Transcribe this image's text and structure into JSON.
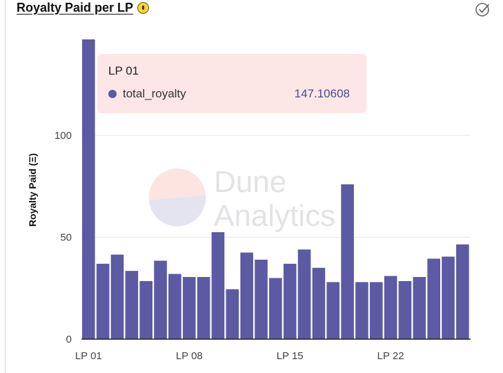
{
  "header": {
    "title": "Royalty Paid per LP"
  },
  "tooltip": {
    "title": "LP 01",
    "series_name": "total_royalty",
    "value": "147.10608"
  },
  "watermark": {
    "line1": "Dune",
    "line2": "Analytics"
  },
  "colors": {
    "bar": "#5b5aa3",
    "accent": "#f6d33c"
  },
  "chart_data": {
    "type": "bar",
    "title": "Royalty Paid per LP",
    "xlabel": "",
    "ylabel": "Royalty Paid (Ξ)",
    "ylim": [
      0,
      148
    ],
    "yticks": [
      0,
      50,
      100
    ],
    "xtick_labels": [
      "LP 01",
      "LP 08",
      "LP 15",
      "LP 22"
    ],
    "categories": [
      "LP 01",
      "LP 02",
      "LP 03",
      "LP 04",
      "LP 05",
      "LP 06",
      "LP 07",
      "LP 08",
      "LP 09",
      "LP 10",
      "LP 11",
      "LP 12",
      "LP 13",
      "LP 14",
      "LP 15",
      "LP 16",
      "LP 17",
      "LP 18",
      "LP 19",
      "LP 20",
      "LP 21",
      "LP 22",
      "LP 23",
      "LP 24",
      "LP 25",
      "LP 26",
      "LP 27"
    ],
    "series": [
      {
        "name": "total_royalty",
        "values": [
          147.1,
          37,
          41.5,
          33.5,
          28.5,
          38.5,
          32,
          30.5,
          30.5,
          52.5,
          24.5,
          42.5,
          39,
          30,
          37,
          44,
          35,
          28,
          76,
          28,
          28,
          31,
          28.5,
          30.5,
          39.5,
          40.5,
          46.5
        ]
      }
    ],
    "grid": true,
    "legend": "none"
  }
}
